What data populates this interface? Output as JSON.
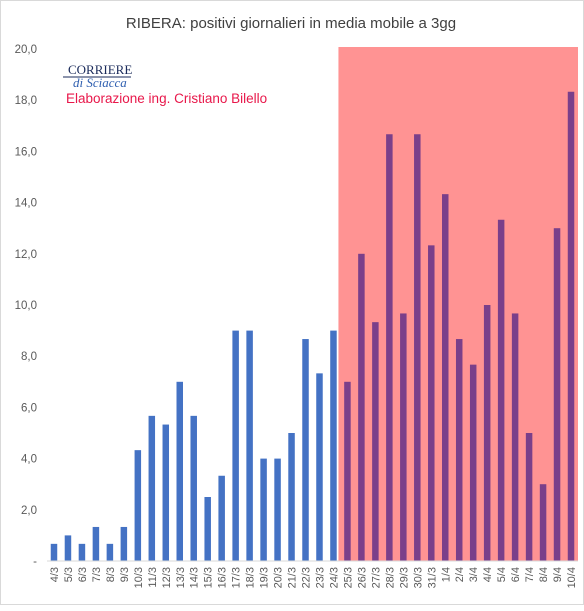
{
  "chart_data": {
    "type": "bar",
    "title": "RIBERA: positivi giornalieri in media mobile a 3gg",
    "ylim": [
      0,
      20
    ],
    "ytick_labels": [
      "-",
      "2,0",
      "4,0",
      "6,0",
      "8,0",
      "10,0",
      "12,0",
      "14,0",
      "16,0",
      "18,0",
      "20,0"
    ],
    "grid": false,
    "legend": "none",
    "categories": [
      "4/3",
      "5/3",
      "6/3",
      "7/3",
      "8/3",
      "9/3",
      "10/3",
      "11/3",
      "12/3",
      "13/3",
      "14/3",
      "15/3",
      "16/3",
      "17/3",
      "18/3",
      "19/3",
      "20/3",
      "21/3",
      "22/3",
      "23/3",
      "24/3",
      "25/3",
      "26/3",
      "27/3",
      "28/3",
      "29/3",
      "30/3",
      "31/3",
      "1/4",
      "2/4",
      "3/4",
      "4/4",
      "5/4",
      "6/4",
      "7/4",
      "8/4",
      "9/4",
      "10/4"
    ],
    "values": [
      0.67,
      1.0,
      0.67,
      1.33,
      0.67,
      1.33,
      4.33,
      5.67,
      5.33,
      7.0,
      5.67,
      2.5,
      3.33,
      9.0,
      9.0,
      4.0,
      4.0,
      5.0,
      8.67,
      7.33,
      9.0,
      7.0,
      12.0,
      9.33,
      16.67,
      9.67,
      16.67,
      12.33,
      14.33,
      8.67,
      7.67,
      10.0,
      13.33,
      9.67,
      5.0,
      3.0,
      13.0,
      18.33
    ],
    "highlight": {
      "from": "25/3",
      "to": "10/4",
      "color": "#ff8080"
    },
    "bar_color": "#4472c4",
    "bar_color_highlighted": "#7a3f8a"
  },
  "logo": {
    "line1": "CORRIERE",
    "line2": "di Sciacca"
  },
  "credit": "Elaborazione ing. Cristiano Bilello"
}
